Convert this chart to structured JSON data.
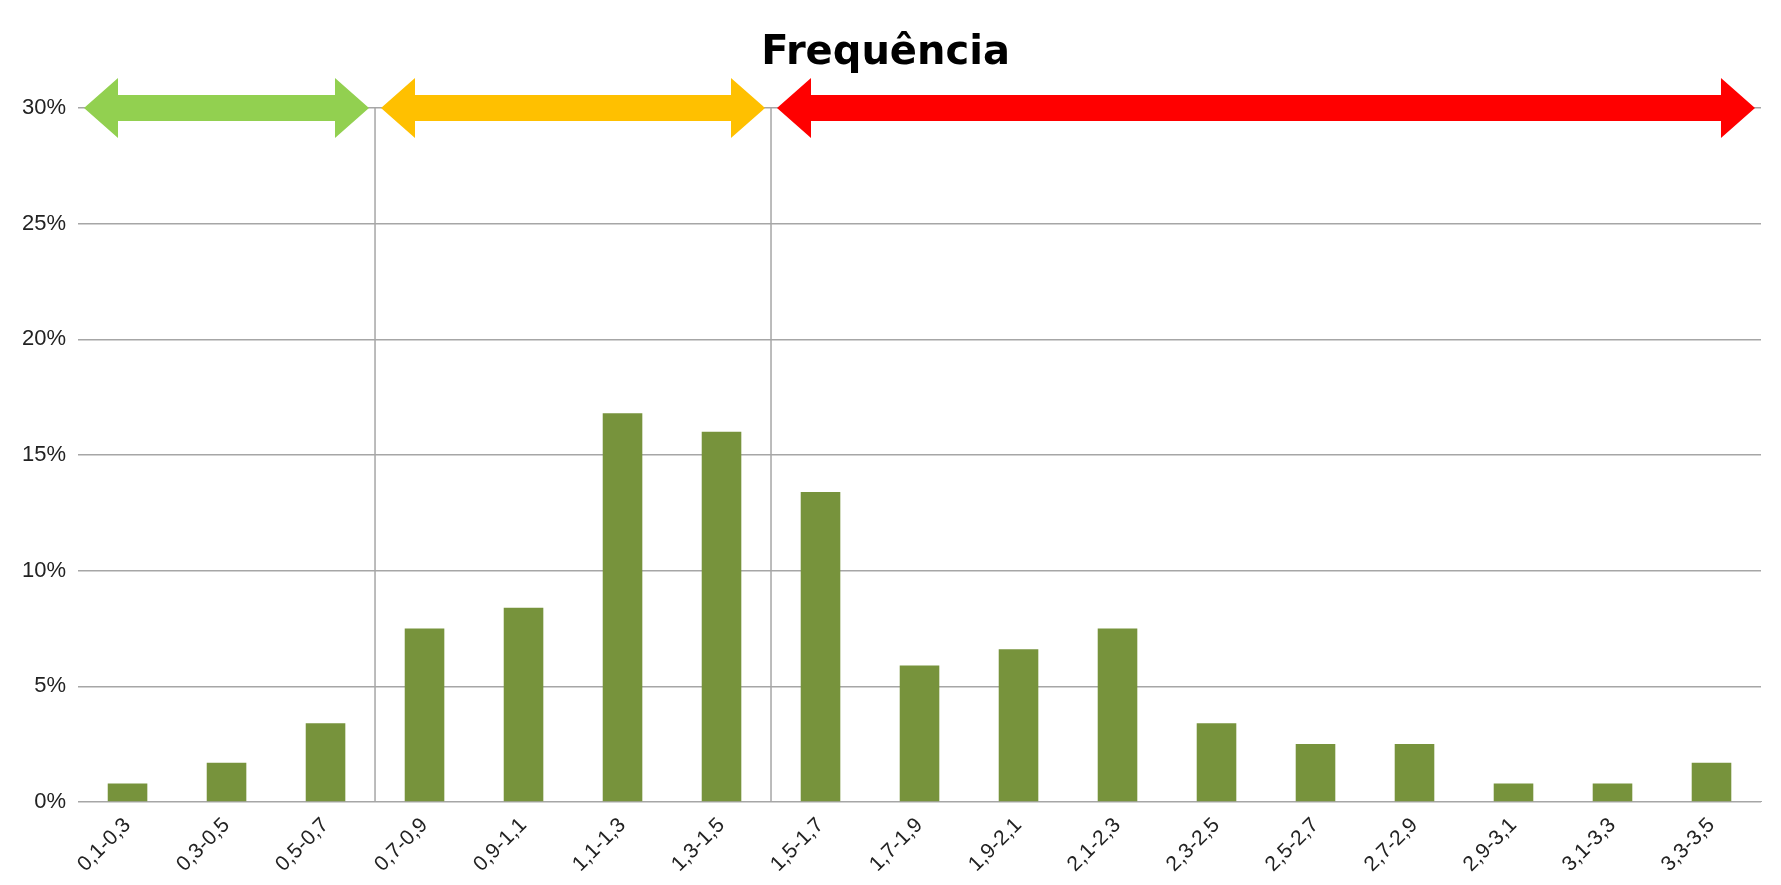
{
  "chart_data": {
    "type": "bar",
    "title": "Frequência",
    "categories": [
      "0,1-0,3",
      "0,3-0,5",
      "0,5-0,7",
      "0,7-0,9",
      "0,9-1,1",
      "1,1-1,3",
      "1,3-1,5",
      "1,5-1,7",
      "1,7-1,9",
      "1,9-2,1",
      "2,1-2,3",
      "2,3-2,5",
      "2,5-2,7",
      "2,7-2,9",
      "2,9-3,1",
      "3,1-3,3",
      "3,3-3,5"
    ],
    "values": [
      0.8,
      1.7,
      3.4,
      7.5,
      8.4,
      16.8,
      16.0,
      13.4,
      5.9,
      6.6,
      7.5,
      3.4,
      2.5,
      2.5,
      0.8,
      0.8,
      1.7
    ],
    "color": "#77933c",
    "ylim": [
      0,
      30
    ],
    "yticks": [
      {
        "value": 0,
        "label": "0%"
      },
      {
        "value": 5,
        "label": "5%"
      },
      {
        "value": 10,
        "label": "10%"
      },
      {
        "value": 15,
        "label": "15%"
      },
      {
        "value": 20,
        "label": "20%"
      },
      {
        "value": 25,
        "label": "25%"
      },
      {
        "value": 30,
        "label": "30%"
      }
    ],
    "grid": "y",
    "legend": false
  }
}
